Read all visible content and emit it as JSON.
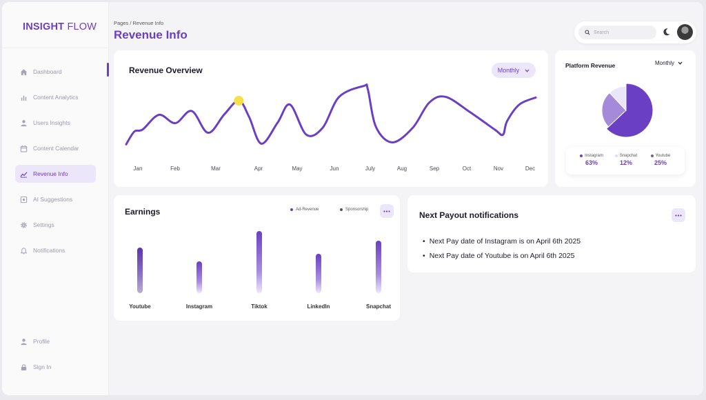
{
  "app": {
    "logo_bold": "INSIGHT",
    "logo_light": " FLOW"
  },
  "sidebar": {
    "items": [
      {
        "label": "Dashboard",
        "icon": "home-icon"
      },
      {
        "label": "Content Analytics",
        "icon": "bar-chart-icon"
      },
      {
        "label": "Users Insights",
        "icon": "user-icon"
      },
      {
        "label": "Content Calendar",
        "icon": "calendar-icon"
      },
      {
        "label": "Revenue Info",
        "icon": "line-chart-icon",
        "active": true
      },
      {
        "label": "AI Suggestions",
        "icon": "ai-icon"
      },
      {
        "label": "Settings",
        "icon": "gear-icon"
      },
      {
        "label": "Notifications",
        "icon": "bell-icon"
      }
    ],
    "bottom_items": [
      {
        "label": "Profile",
        "icon": "user-icon"
      },
      {
        "label": "Sign In",
        "icon": "lock-icon"
      }
    ]
  },
  "header": {
    "breadcrumb": "Pages / Revenue Info",
    "title": "Revenue Info",
    "search_placeholder": "Search"
  },
  "colors": {
    "accent": "#6a3fc4",
    "accent_light": "#ece6fa",
    "highlight": "#f5e04a"
  },
  "revenue_overview": {
    "title": "Revenue Overview",
    "period": "Monthly"
  },
  "platform_revenue": {
    "title": "Platform Revenue",
    "period": "Monthly",
    "legend": [
      {
        "name": "Instagram",
        "value": "63%",
        "color": "#6a3fc4"
      },
      {
        "name": "Snapchat",
        "value": "12%",
        "color": "#ece6fa"
      },
      {
        "name": "Youtube",
        "value": "25%",
        "color": "#6b6b78"
      }
    ]
  },
  "earnings": {
    "title": "Earnings",
    "legend": [
      {
        "name": "Ad-Revenue",
        "color": "#6a3fc4"
      },
      {
        "name": "Sponsorship",
        "color": "#555566"
      }
    ]
  },
  "payout": {
    "title": "Next Payout notifications",
    "items": [
      "Next Pay date of Instagram is on April 6th 2025",
      "Next Pay date of Youtube is on April 6th 2025"
    ]
  },
  "chart_data": [
    {
      "type": "line",
      "x": [
        "Jan",
        "Feb",
        "Mar",
        "Apr",
        "May",
        "Jun",
        "July",
        "Aug",
        "Sep",
        "Oct",
        "Nov",
        "Dec"
      ],
      "ylim": [
        0,
        100
      ],
      "grid": false,
      "points": [
        [
          0.0,
          4
        ],
        [
          0.02,
          24
        ],
        [
          0.04,
          27
        ],
        [
          0.08,
          50
        ],
        [
          0.12,
          37
        ],
        [
          0.16,
          56
        ],
        [
          0.2,
          22
        ],
        [
          0.24,
          51
        ],
        [
          0.275,
          72
        ],
        [
          0.3,
          47
        ],
        [
          0.33,
          5
        ],
        [
          0.37,
          38
        ],
        [
          0.4,
          66
        ],
        [
          0.44,
          19
        ],
        [
          0.48,
          30
        ],
        [
          0.52,
          78
        ],
        [
          0.58,
          95
        ],
        [
          0.59,
          90
        ],
        [
          0.61,
          31
        ],
        [
          0.65,
          7
        ],
        [
          0.7,
          30
        ],
        [
          0.74,
          69
        ],
        [
          0.78,
          78
        ],
        [
          0.84,
          54
        ],
        [
          0.9,
          27
        ],
        [
          0.92,
          19
        ],
        [
          0.93,
          40
        ],
        [
          0.96,
          66
        ],
        [
          1.0,
          77
        ]
      ],
      "highlight_x": 0.275
    },
    {
      "type": "pie",
      "labels": [
        "Instagram",
        "Snapchat",
        "Youtube"
      ],
      "values": [
        63,
        12,
        25
      ]
    },
    {
      "type": "bar",
      "categories": [
        "Youtube",
        "Instagram",
        "Tiktok",
        "LinkedIn",
        "Snapchat"
      ],
      "values": [
        66,
        46,
        90,
        57,
        76
      ],
      "ylim": [
        0,
        100
      ]
    }
  ]
}
